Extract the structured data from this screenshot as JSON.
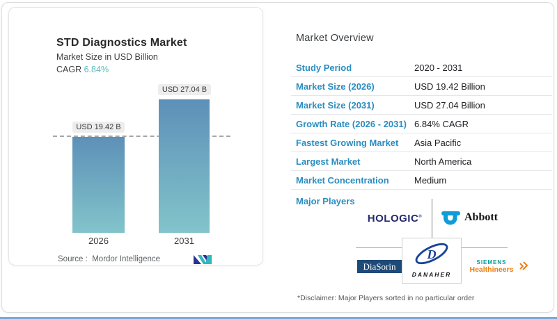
{
  "chart_card": {
    "title": "STD Diagnostics Market",
    "subtitle": "Market Size in USD Billion",
    "cagr_label": "CAGR",
    "cagr_value": "6.84%",
    "source_label": "Source :",
    "source_value": "Mordor Intelligence"
  },
  "chart_data": {
    "type": "bar",
    "title": "STD Diagnostics Market",
    "ylabel": "Market Size in USD Billion",
    "categories": [
      "2026",
      "2031"
    ],
    "values": [
      19.42,
      27.04
    ],
    "bar_labels": [
      "USD 19.42 B",
      "USD 27.04 B"
    ],
    "cagr_pct": 6.84,
    "reference_line": 19.42,
    "grid": false,
    "colors": {
      "bar_top": "#5d90b8",
      "bar_bottom": "#82c4ca"
    }
  },
  "overview": {
    "title": "Market Overview",
    "rows": [
      {
        "label": "Study Period",
        "value": "2020 - 2031"
      },
      {
        "label": "Market Size (2026)",
        "value": "USD 19.42 Billion"
      },
      {
        "label": "Market Size (2031)",
        "value": "USD 27.04 Billion"
      },
      {
        "label": "Growth Rate (2026 - 2031)",
        "value": "6.84% CAGR"
      },
      {
        "label": "Fastest Growing Market",
        "value": "Asia Pacific"
      },
      {
        "label": "Largest Market",
        "value": "North America"
      },
      {
        "label": "Market Concentration",
        "value": "Medium"
      }
    ]
  },
  "players": {
    "label": "Major Players",
    "hologic": "HOLOGIC",
    "hologic_reg": "®",
    "abbott": "Abbott",
    "diasorin": "DiaSorin",
    "danaher": "DANAHER",
    "siemens_line1": "SIEMENS",
    "siemens_line2": "Healthineers"
  },
  "footer": {
    "disclaimer": "*Disclaimer: Major Players sorted in no particular order"
  },
  "colors": {
    "accent_teal": "#5fb9bd",
    "label_blue": "#2b8dc0",
    "hologic_navy": "#262a6e",
    "abbott_blue": "#0f9dd7",
    "diasorin_navy": "#1e4a78",
    "danaher_blue": "#1b4499",
    "siemens_teal": "#009999",
    "healthineers_orange": "#ee7d0c",
    "bottom_bar_blue": "#79a8dc"
  }
}
